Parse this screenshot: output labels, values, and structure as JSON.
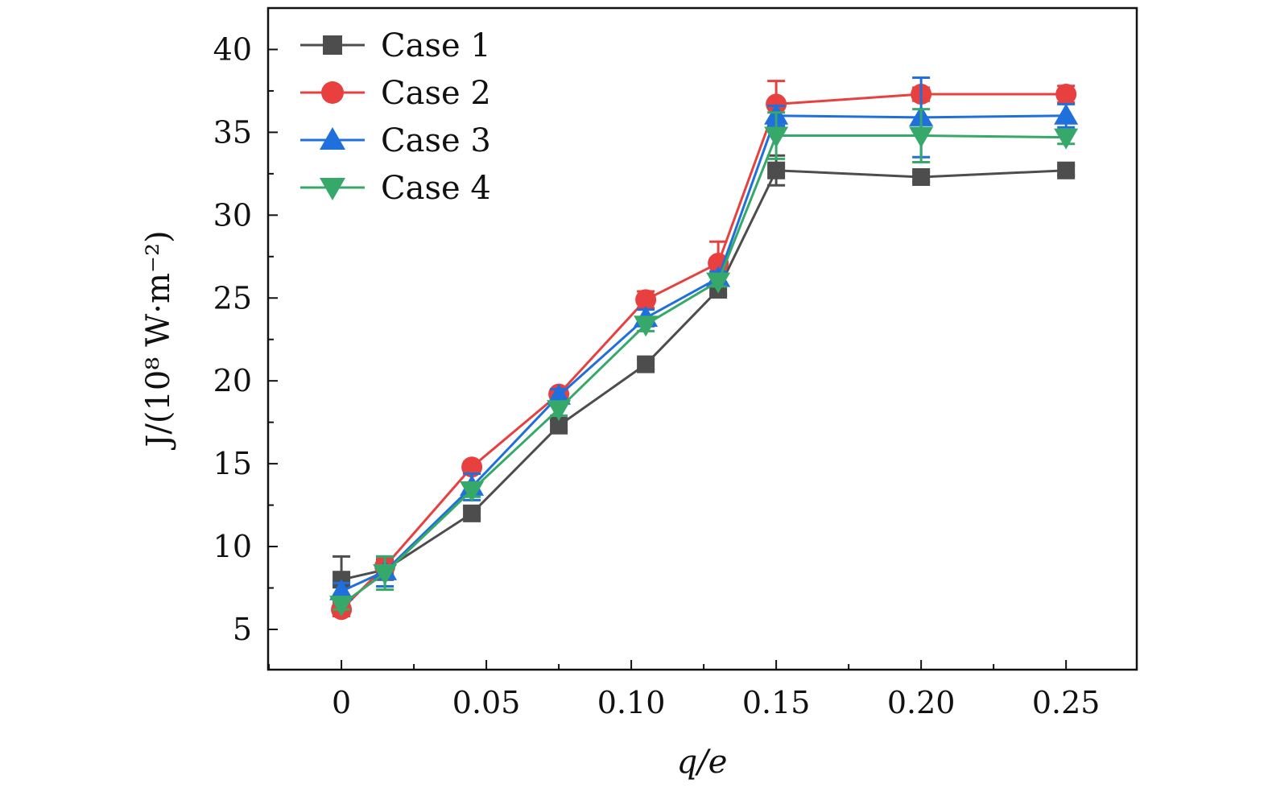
{
  "chart_data": {
    "type": "line",
    "title": "",
    "xlabel": "q/e",
    "ylabel": "J/(10⁸ W·m⁻²)",
    "xlim": [
      -0.0253,
      0.2744
    ],
    "ylim": [
      2.57,
      42.5
    ],
    "xticks": [
      0,
      0.05,
      0.1,
      0.15,
      0.2,
      0.25
    ],
    "xtick_labels": [
      "0",
      "0.05",
      "0.10",
      "0.15",
      "0.20",
      "0.25"
    ],
    "yticks": [
      5,
      10,
      15,
      20,
      25,
      30,
      35,
      40
    ],
    "ytick_labels": [
      "5",
      "10",
      "15",
      "20",
      "25",
      "30",
      "35",
      "40"
    ],
    "grid": false,
    "legend_position": "top-left",
    "x": [
      0,
      0.015,
      0.045,
      0.075,
      0.105,
      0.13,
      0.15,
      0.2,
      0.25
    ],
    "series": [
      {
        "name": "Case 1",
        "color": "#4d4d4d",
        "marker": "square",
        "values": [
          8.0,
          8.6,
          12.0,
          17.3,
          21.0,
          25.5,
          32.7,
          32.3,
          32.7
        ],
        "errors": [
          1.4,
          0.6,
          0.3,
          0.3,
          0.3,
          0.3,
          0.9,
          0.3,
          0.3
        ]
      },
      {
        "name": "Case 2",
        "color": "#e8403f",
        "marker": "circle",
        "values": [
          6.2,
          8.8,
          14.8,
          19.2,
          24.9,
          27.1,
          36.7,
          37.3,
          37.3
        ],
        "errors": [
          0.4,
          0.5,
          0.3,
          0.3,
          0.5,
          1.3,
          1.4,
          0.4,
          0.5
        ]
      },
      {
        "name": "Case 3",
        "color": "#1f6fdc",
        "marker": "triangle-up",
        "values": [
          7.3,
          8.5,
          13.6,
          19.1,
          23.8,
          26.2,
          36.0,
          35.9,
          36.0
        ],
        "errors": [
          0.5,
          0.9,
          0.8,
          0.4,
          0.5,
          0.4,
          0.6,
          2.4,
          0.7
        ]
      },
      {
        "name": "Case 4",
        "color": "#35a86a",
        "marker": "triangle-down",
        "values": [
          6.5,
          8.4,
          13.4,
          18.3,
          23.4,
          26.0,
          34.8,
          34.8,
          34.7
        ],
        "errors": [
          0.3,
          1.0,
          0.4,
          0.4,
          0.4,
          0.3,
          1.4,
          1.6,
          0.4
        ]
      }
    ]
  }
}
